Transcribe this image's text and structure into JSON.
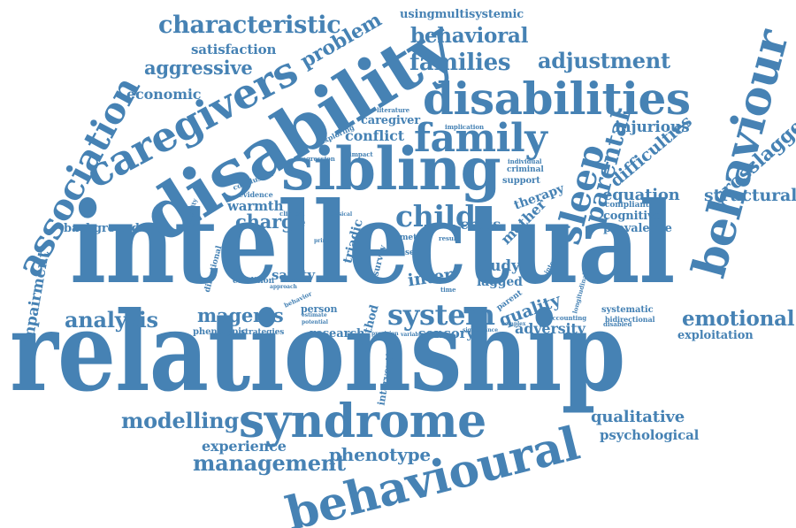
{
  "palette": {
    "background": "#ffffff",
    "word": "#4682b4"
  },
  "words": [
    {
      "id": "relationship",
      "text": "relationship"
    },
    {
      "id": "intellectual",
      "text": "intellectual"
    },
    {
      "id": "disability",
      "text": "disability"
    },
    {
      "id": "sibling",
      "text": "sibling"
    },
    {
      "id": "disabilities",
      "text": "disabilities"
    },
    {
      "id": "caregivers",
      "text": "caregivers"
    },
    {
      "id": "behavioural",
      "text": "behavioural"
    },
    {
      "id": "syndrome",
      "text": "syndrome"
    },
    {
      "id": "behaviour",
      "text": "behaviour"
    },
    {
      "id": "association",
      "text": "association"
    },
    {
      "id": "family",
      "text": "family"
    },
    {
      "id": "system",
      "text": "system"
    },
    {
      "id": "child",
      "text": "child"
    },
    {
      "id": "characteristic",
      "text": "characteristic"
    },
    {
      "id": "behavioral",
      "text": "behavioral"
    },
    {
      "id": "families",
      "text": "families"
    },
    {
      "id": "adjustment",
      "text": "adjustment"
    },
    {
      "id": "problem",
      "text": "problem"
    },
    {
      "id": "aggressive",
      "text": "aggressive"
    },
    {
      "id": "satisfaction",
      "text": "satisfaction"
    },
    {
      "id": "economic",
      "text": "economic"
    },
    {
      "id": "usingmultisystemic",
      "text": "usingmultisystemic"
    },
    {
      "id": "management",
      "text": "management"
    },
    {
      "id": "modelling",
      "text": "modelling"
    },
    {
      "id": "analysis",
      "text": "analysis"
    },
    {
      "id": "magenis",
      "text": "magenis"
    },
    {
      "id": "emotional",
      "text": "emotional"
    },
    {
      "id": "exploitation",
      "text": "exploitation"
    },
    {
      "id": "qualitative",
      "text": "qualitative"
    },
    {
      "id": "psychological",
      "text": "psychological"
    },
    {
      "id": "phenotype",
      "text": "phenotype"
    },
    {
      "id": "experience",
      "text": "experience"
    },
    {
      "id": "sleep",
      "text": "sleep"
    },
    {
      "id": "parental",
      "text": "parental"
    },
    {
      "id": "difficulties",
      "text": "difficulties"
    },
    {
      "id": "crosslagged",
      "text": "crosslagged"
    },
    {
      "id": "structural",
      "text": "structural"
    },
    {
      "id": "equation",
      "text": "equation"
    },
    {
      "id": "injurious",
      "text": "injurious"
    },
    {
      "id": "cognitive",
      "text": "cognitive"
    },
    {
      "id": "compliant",
      "text": "compliant"
    },
    {
      "id": "prevalence",
      "text": "prevalence"
    },
    {
      "id": "impairment",
      "text": "impairment"
    },
    {
      "id": "background",
      "text": "background"
    },
    {
      "id": "charge",
      "text": "charge"
    },
    {
      "id": "warmth",
      "text": "warmth"
    },
    {
      "id": "conflict",
      "text": "conflict"
    },
    {
      "id": "caregiver",
      "text": "caregiver"
    },
    {
      "id": "safety",
      "text": "safety"
    },
    {
      "id": "research",
      "text": "research"
    },
    {
      "id": "sensory",
      "text": "sensory"
    },
    {
      "id": "adversity",
      "text": "adversity"
    },
    {
      "id": "quality",
      "text": "quality"
    },
    {
      "id": "study",
      "text": "study"
    },
    {
      "id": "lagged",
      "text": "lagged"
    },
    {
      "id": "inter",
      "text": "inter"
    },
    {
      "id": "cross",
      "text": "cross"
    },
    {
      "id": "mother",
      "text": "mother"
    },
    {
      "id": "therapy",
      "text": "therapy"
    },
    {
      "id": "method",
      "text": "method"
    },
    {
      "id": "intervention",
      "text": "intervention"
    },
    {
      "id": "triadic",
      "text": "triadic"
    },
    {
      "id": "person",
      "text": "person"
    },
    {
      "id": "phenotypic",
      "text": "phenotypic"
    },
    {
      "id": "strategies",
      "text": "strategies"
    },
    {
      "id": "condition",
      "text": "condition"
    },
    {
      "id": "directional",
      "text": "directional"
    },
    {
      "id": "systematic",
      "text": "systematic"
    },
    {
      "id": "bidirectional",
      "text": "bidirectional"
    },
    {
      "id": "support",
      "text": "support"
    },
    {
      "id": "criminal",
      "text": "criminal"
    },
    {
      "id": "individual",
      "text": "individual"
    },
    {
      "id": "clinical",
      "text": "clinical"
    },
    {
      "id": "evidence",
      "text": "evidence"
    },
    {
      "id": "conclusion",
      "text": "conclusion"
    },
    {
      "id": "regression",
      "text": "regression"
    },
    {
      "id": "exploring",
      "text": "exploring"
    },
    {
      "id": "impact",
      "text": "impact"
    },
    {
      "id": "implication",
      "text": "implication"
    },
    {
      "id": "literature",
      "text": "literature"
    },
    {
      "id": "variability",
      "text": "variability"
    },
    {
      "id": "meta",
      "text": "meta"
    },
    {
      "id": "survey",
      "text": "survey"
    },
    {
      "id": "self",
      "text": "self"
    },
    {
      "id": "result",
      "text": "result"
    },
    {
      "id": "parent",
      "text": "parent"
    },
    {
      "id": "interview",
      "text": "interview"
    },
    {
      "id": "longitudinal",
      "text": "longitudinal"
    },
    {
      "id": "disabled",
      "text": "disabled"
    },
    {
      "id": "accounting",
      "text": "accounting"
    },
    {
      "id": "complex",
      "text": "complex"
    },
    {
      "id": "significance",
      "text": "significance"
    },
    {
      "id": "provision",
      "text": "provision"
    },
    {
      "id": "variable",
      "text": "variable"
    },
    {
      "id": "estimate",
      "text": "estimate"
    },
    {
      "id": "potential",
      "text": "potential"
    },
    {
      "id": "approach",
      "text": "approach"
    },
    {
      "id": "behavior",
      "text": "behavior"
    },
    {
      "id": "physical",
      "text": "physical"
    },
    {
      "id": "primary",
      "text": "primary"
    },
    {
      "id": "time",
      "text": "time"
    }
  ]
}
